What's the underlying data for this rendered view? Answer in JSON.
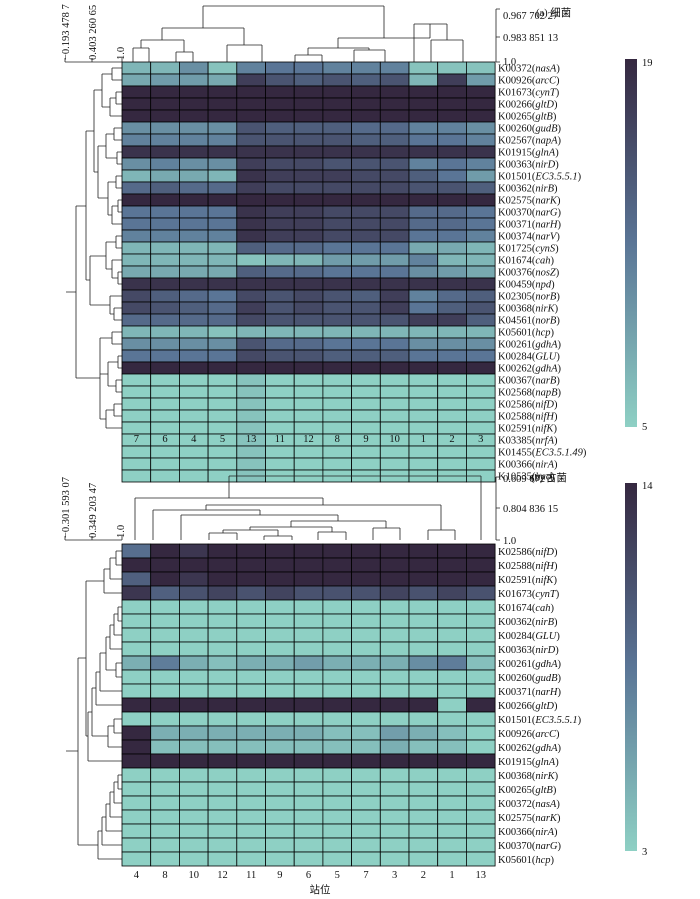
{
  "palette": {
    "low": "#8ed0c4",
    "mid": "#5a7596",
    "high": "#352840"
  },
  "chart_data": [
    {
      "type": "heatmap",
      "title": "(a) 细菌",
      "colorbar": {
        "min": 5,
        "max": 19,
        "min_label": "5",
        "max_label": "19"
      },
      "row_dendrogram_ticks": [
        "−0.193 478 7",
        "0.403 260 65",
        "1.0"
      ],
      "col_dendrogram_ticks": [
        "0.967 702 27",
        "0.983 851 13",
        "1.0"
      ],
      "columns": [
        "7",
        "6",
        "4",
        "5",
        "13",
        "11",
        "12",
        "8",
        "9",
        "10",
        "1",
        "2",
        "3"
      ],
      "rows": [
        {
          "id": "K00372",
          "gene": "nasA"
        },
        {
          "id": "K00926",
          "gene": "arcC"
        },
        {
          "id": "K01673",
          "gene": "cynT"
        },
        {
          "id": "K00266",
          "gene": "gltD"
        },
        {
          "id": "K00265",
          "gene": "gltB"
        },
        {
          "id": "K00260",
          "gene": "gudB"
        },
        {
          "id": "K02567",
          "gene": "napA"
        },
        {
          "id": "K01915",
          "gene": "glnA"
        },
        {
          "id": "K00363",
          "gene": "nirD"
        },
        {
          "id": "K01501",
          "gene": "EC3.5.5.1"
        },
        {
          "id": "K00362",
          "gene": "nirB"
        },
        {
          "id": "K02575",
          "gene": "narK"
        },
        {
          "id": "K00370",
          "gene": "narG"
        },
        {
          "id": "K00371",
          "gene": "narH"
        },
        {
          "id": "K00374",
          "gene": "narV"
        },
        {
          "id": "K01725",
          "gene": "cynS"
        },
        {
          "id": "K01674",
          "gene": "cah"
        },
        {
          "id": "K00376",
          "gene": "nosZ"
        },
        {
          "id": "K00459",
          "gene": "npd"
        },
        {
          "id": "K02305",
          "gene": "norB"
        },
        {
          "id": "K00368",
          "gene": "nirK"
        },
        {
          "id": "K04561",
          "gene": "norB"
        },
        {
          "id": "K05601",
          "gene": "hcp"
        },
        {
          "id": "K00261",
          "gene": "gdhA"
        },
        {
          "id": "K00284",
          "gene": "GLU"
        },
        {
          "id": "K00262",
          "gene": "gdhA"
        },
        {
          "id": "K00367",
          "gene": "narB"
        },
        {
          "id": "K02568",
          "gene": "napB"
        },
        {
          "id": "K02586",
          "gene": "nifD"
        },
        {
          "id": "K02588",
          "gene": "nifH"
        },
        {
          "id": "K02591",
          "gene": "nifK"
        },
        {
          "id": "K03385",
          "gene": "nrfA"
        },
        {
          "id": "K01455",
          "gene": "EC3.5.1.49"
        },
        {
          "id": "K00366",
          "gene": "nirA"
        },
        {
          "id": "K10535",
          "gene": "hao"
        }
      ],
      "values": [
        [
          7,
          7,
          10,
          6,
          11,
          12,
          12,
          11,
          11,
          11,
          6,
          6,
          6
        ],
        [
          8,
          9,
          9,
          8,
          17,
          15,
          14,
          15,
          14,
          15,
          7,
          17,
          9
        ],
        [
          19,
          19,
          19,
          19,
          19,
          19,
          19,
          19,
          19,
          19,
          19,
          19,
          19
        ],
        [
          19,
          19,
          19,
          19,
          19,
          19,
          19,
          19,
          19,
          19,
          19,
          19,
          19
        ],
        [
          19,
          19,
          19,
          19,
          19,
          19,
          19,
          19,
          19,
          19,
          19,
          19,
          19
        ],
        [
          10,
          10,
          10,
          10,
          15,
          14,
          14,
          14,
          13,
          13,
          11,
          11,
          10
        ],
        [
          11,
          11,
          11,
          11,
          15,
          15,
          15,
          15,
          14,
          14,
          12,
          12,
          11
        ],
        [
          18,
          18,
          18,
          18,
          18,
          18,
          18,
          18,
          18,
          18,
          18,
          18,
          18
        ],
        [
          10,
          11,
          10,
          10,
          17,
          16,
          16,
          15,
          15,
          15,
          11,
          12,
          11
        ],
        [
          7,
          8,
          8,
          7,
          18,
          17,
          17,
          17,
          16,
          16,
          14,
          12,
          9
        ],
        [
          13,
          14,
          13,
          13,
          17,
          16,
          16,
          16,
          16,
          16,
          15,
          15,
          14
        ],
        [
          19,
          19,
          19,
          19,
          19,
          19,
          19,
          19,
          19,
          19,
          19,
          19,
          19
        ],
        [
          12,
          12,
          12,
          12,
          18,
          17,
          17,
          16,
          16,
          16,
          13,
          13,
          12
        ],
        [
          12,
          12,
          12,
          12,
          18,
          17,
          17,
          16,
          16,
          16,
          13,
          13,
          12
        ],
        [
          11,
          11,
          11,
          11,
          18,
          17,
          17,
          16,
          16,
          16,
          12,
          12,
          11
        ],
        [
          7,
          7,
          7,
          7,
          14,
          13,
          13,
          12,
          12,
          12,
          8,
          8,
          7
        ],
        [
          7,
          7,
          7,
          7,
          6,
          7,
          7,
          9,
          9,
          9,
          11,
          7,
          7
        ],
        [
          8,
          8,
          8,
          8,
          14,
          13,
          13,
          12,
          12,
          12,
          10,
          9,
          8
        ],
        [
          18,
          18,
          18,
          18,
          18,
          18,
          18,
          18,
          18,
          18,
          18,
          18,
          18
        ],
        [
          16,
          14,
          13,
          12,
          16,
          15,
          16,
          15,
          14,
          17,
          11,
          13,
          14
        ],
        [
          16,
          15,
          14,
          13,
          17,
          15,
          16,
          15,
          15,
          17,
          12,
          14,
          15
        ],
        [
          13,
          13,
          13,
          13,
          16,
          15,
          15,
          15,
          15,
          15,
          17,
          17,
          14
        ],
        [
          7,
          7,
          7,
          6,
          7,
          7,
          7,
          7,
          7,
          7,
          7,
          7,
          7
        ],
        [
          10,
          10,
          10,
          10,
          15,
          13,
          13,
          12,
          12,
          12,
          10,
          10,
          10
        ],
        [
          12,
          12,
          12,
          12,
          16,
          15,
          15,
          14,
          14,
          14,
          12,
          12,
          12
        ],
        [
          19,
          19,
          19,
          19,
          19,
          19,
          19,
          19,
          19,
          19,
          19,
          19,
          19
        ],
        [
          5,
          5,
          5,
          5,
          6,
          5,
          5,
          5,
          5,
          5,
          5,
          5,
          5
        ],
        [
          5,
          5,
          5,
          5,
          6,
          5,
          5,
          5,
          5,
          5,
          5,
          5,
          5
        ],
        [
          5,
          5,
          5,
          5,
          6,
          5,
          5,
          5,
          5,
          5,
          5,
          5,
          5
        ],
        [
          5,
          5,
          5,
          5,
          6,
          5,
          5,
          5,
          5,
          5,
          5,
          5,
          5
        ],
        [
          5,
          5,
          5,
          5,
          6,
          5,
          5,
          5,
          5,
          5,
          5,
          5,
          5
        ],
        [
          5,
          5,
          5,
          5,
          6,
          5,
          5,
          5,
          5,
          5,
          5,
          5,
          5
        ],
        [
          5,
          5,
          5,
          5,
          6,
          5,
          5,
          5,
          5,
          5,
          5,
          5,
          5
        ],
        [
          5,
          5,
          5,
          5,
          6,
          5,
          5,
          5,
          5,
          5,
          5,
          5,
          5
        ],
        [
          5,
          5,
          5,
          5,
          6,
          5,
          5,
          5,
          5,
          5,
          5,
          5,
          5
        ]
      ]
    },
    {
      "type": "heatmap",
      "title": "(b) 古菌",
      "xlabel": "站位",
      "colorbar": {
        "min": 3,
        "max": 14,
        "min_label": "3",
        "max_label": "14"
      },
      "row_dendrogram_ticks": [
        "−0.301 593 07",
        "0.349 203 47",
        "1.0"
      ],
      "col_dendrogram_ticks": [
        "0.609 672 3",
        "0.804 836 15",
        "1.0"
      ],
      "columns": [
        "4",
        "8",
        "10",
        "12",
        "11",
        "9",
        "6",
        "5",
        "7",
        "3",
        "2",
        "1",
        "13"
      ],
      "rows": [
        {
          "id": "K02586",
          "gene": "nifD"
        },
        {
          "id": "K02588",
          "gene": "nifH"
        },
        {
          "id": "K02591",
          "gene": "nifK"
        },
        {
          "id": "K01673",
          "gene": "cynT"
        },
        {
          "id": "K01674",
          "gene": "cah"
        },
        {
          "id": "K00362",
          "gene": "nirB"
        },
        {
          "id": "K00284",
          "gene": "GLU"
        },
        {
          "id": "K00363",
          "gene": "nirD"
        },
        {
          "id": "K00261",
          "gene": "gdhA"
        },
        {
          "id": "K00260",
          "gene": "gudB"
        },
        {
          "id": "K00371",
          "gene": "narH"
        },
        {
          "id": "K00266",
          "gene": "gltD"
        },
        {
          "id": "K01501",
          "gene": "EC3.5.5.1"
        },
        {
          "id": "K00926",
          "gene": "arcC"
        },
        {
          "id": "K00262",
          "gene": "gdhA"
        },
        {
          "id": "K01915",
          "gene": "glnA"
        },
        {
          "id": "K00368",
          "gene": "nirK"
        },
        {
          "id": "K00265",
          "gene": "gltB"
        },
        {
          "id": "K00372",
          "gene": "nasA"
        },
        {
          "id": "K02575",
          "gene": "narK"
        },
        {
          "id": "K00366",
          "gene": "nirA"
        },
        {
          "id": "K00370",
          "gene": "narG"
        },
        {
          "id": "K05601",
          "gene": "hcp"
        }
      ],
      "values": [
        [
          9,
          14,
          13,
          14,
          14,
          14,
          14,
          14,
          14,
          14,
          14,
          14,
          14
        ],
        [
          14,
          14,
          14,
          14,
          14,
          14,
          14,
          14,
          14,
          14,
          14,
          14,
          14
        ],
        [
          10,
          14,
          13,
          14,
          14,
          14,
          14,
          14,
          14,
          14,
          14,
          14,
          14
        ],
        [
          13,
          10,
          11,
          12,
          11,
          12,
          11,
          11,
          11,
          12,
          11,
          12,
          11
        ],
        [
          3,
          3,
          3,
          3,
          3,
          3,
          3,
          3,
          3,
          3,
          3,
          3,
          3
        ],
        [
          3,
          3,
          3,
          3,
          3,
          3,
          3,
          3,
          3,
          3,
          3,
          3,
          3
        ],
        [
          3,
          3,
          3,
          3,
          3,
          3,
          3,
          3,
          3,
          3,
          3,
          3,
          3
        ],
        [
          3,
          3,
          3,
          3,
          3,
          3,
          3,
          3,
          3,
          3,
          3,
          3,
          3
        ],
        [
          5,
          8,
          5,
          4,
          5,
          5,
          6,
          5,
          5,
          5,
          7,
          8,
          4
        ],
        [
          3,
          3,
          3,
          3,
          3,
          3,
          3,
          3,
          3,
          3,
          3,
          3,
          3
        ],
        [
          3,
          3,
          3,
          3,
          3,
          3,
          3,
          3,
          3,
          3,
          3,
          3,
          3
        ],
        [
          14,
          14,
          14,
          14,
          14,
          14,
          14,
          14,
          14,
          14,
          14,
          3,
          14
        ],
        [
          3,
          3,
          3,
          3,
          3,
          3,
          3,
          3,
          3,
          3,
          3,
          3,
          3
        ],
        [
          14,
          5,
          5,
          5,
          5,
          5,
          5,
          4,
          4,
          6,
          5,
          4,
          3
        ],
        [
          14,
          4,
          4,
          4,
          4,
          4,
          4,
          4,
          4,
          5,
          4,
          4,
          3
        ],
        [
          14,
          14,
          14,
          14,
          14,
          14,
          14,
          14,
          14,
          14,
          14,
          14,
          14
        ],
        [
          3,
          3,
          3,
          3,
          3,
          3,
          3,
          3,
          3,
          3,
          3,
          3,
          3
        ],
        [
          3,
          3,
          3,
          3,
          3,
          3,
          3,
          3,
          3,
          3,
          3,
          3,
          3
        ],
        [
          3,
          3,
          3,
          3,
          3,
          3,
          3,
          3,
          3,
          3,
          3,
          3,
          3
        ],
        [
          3,
          3,
          3,
          3,
          3,
          3,
          3,
          3,
          3,
          3,
          3,
          3,
          3
        ],
        [
          3,
          3,
          3,
          3,
          3,
          3,
          3,
          3,
          3,
          3,
          3,
          3,
          3
        ],
        [
          3,
          3,
          3,
          3,
          3,
          3,
          3,
          3,
          3,
          3,
          3,
          3,
          3
        ],
        [
          3,
          3,
          3,
          3,
          3,
          3,
          3,
          3,
          3,
          3,
          3,
          3,
          3
        ]
      ]
    }
  ]
}
